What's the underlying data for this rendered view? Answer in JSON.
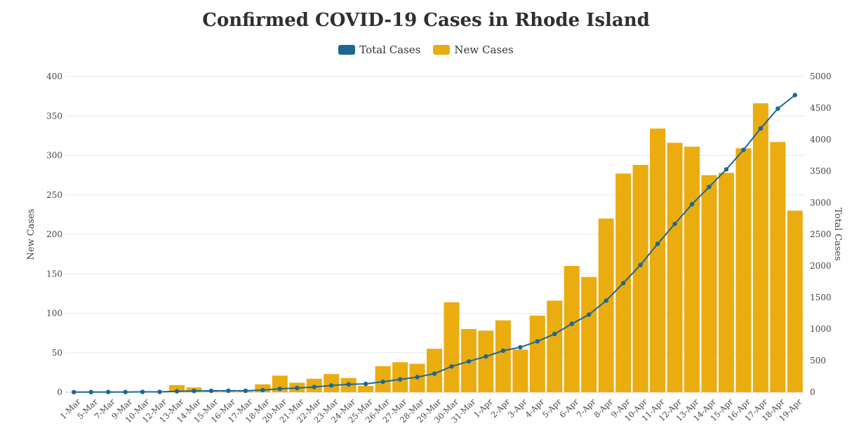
{
  "chart_data": {
    "type": "bar",
    "title": "Confirmed COVID-19 Cases in Rhode Island",
    "ylabel": "New Cases",
    "y2label": "Total Cases",
    "ylim": [
      0,
      400
    ],
    "y2lim": [
      0,
      5000
    ],
    "yticks": [
      0,
      50,
      100,
      150,
      200,
      250,
      300,
      350,
      400
    ],
    "y2ticks": [
      0,
      500,
      1000,
      1500,
      2000,
      2500,
      3000,
      3500,
      4000,
      4500,
      5000
    ],
    "categories": [
      "1-Mar",
      "5-Mar",
      "7-Mar",
      "9-Mar",
      "10-Mar",
      "12-Mar",
      "13-Mar",
      "14-Mar",
      "15-Mar",
      "16-Mar",
      "17-Mar",
      "18-Mar",
      "20-Mar",
      "21-Mar",
      "22-Mar",
      "23-Mar",
      "24-Mar",
      "25-Mar",
      "26-Mar",
      "27-Mar",
      "28-Mar",
      "29-Mar",
      "30-Mar",
      "31-Mar",
      "1-Apr",
      "2-Apr",
      "3-Apr",
      "4-Apr",
      "5-Apr",
      "6-Apr",
      "7-Apr",
      "8-Apr",
      "9-Apr",
      "10-Apr",
      "11-Apr",
      "12-Apr",
      "13-Apr",
      "14-Apr",
      "15-Apr",
      "16-Apr",
      "17-Apr",
      "18-Apr",
      "19-Apr"
    ],
    "series": [
      {
        "name": "New Cases",
        "type": "bar",
        "axis": "left",
        "values": [
          0,
          1,
          1,
          0,
          1,
          1,
          9,
          6,
          2,
          1,
          1,
          10,
          21,
          12,
          17,
          23,
          18,
          8,
          33,
          38,
          36,
          55,
          114,
          80,
          78,
          91,
          54,
          97,
          116,
          160,
          146,
          220,
          277,
          288,
          334,
          316,
          311,
          275,
          278,
          309,
          366,
          317,
          230
        ]
      },
      {
        "name": "Total Cases",
        "type": "line",
        "axis": "right",
        "values": [
          1,
          2,
          3,
          3,
          5,
          5,
          14,
          20,
          22,
          23,
          23,
          33,
          54,
          66,
          83,
          106,
          124,
          132,
          165,
          203,
          239,
          294,
          408,
          488,
          566,
          657,
          711,
          806,
          922,
          1082,
          1229,
          1450,
          1727,
          2015,
          2349,
          2665,
          2976,
          3251,
          3529,
          3838,
          4177,
          4491,
          4706
        ]
      }
    ],
    "legend": [
      "Total Cases",
      "New Cases"
    ],
    "legend_position": "top-center",
    "grid": "horizontal",
    "colors": {
      "bar": "#EAAC0F",
      "line": "#1C6891",
      "grid": "#e8e8e8",
      "axis_text": "#444444",
      "title": "#2f2f2f"
    }
  }
}
